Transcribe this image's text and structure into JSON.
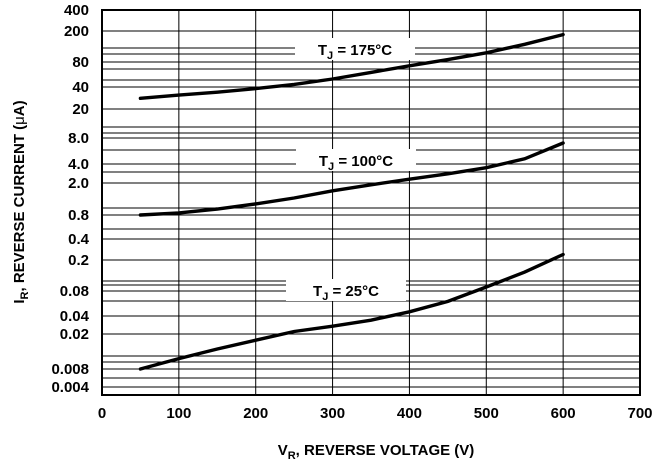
{
  "chart_data": {
    "type": "line",
    "xlabel_main": "V",
    "xlabel_sub": "R",
    "xlabel_rest": ", REVERSE VOLTAGE (V)",
    "ylabel_main": "I",
    "ylabel_sub": "R",
    "ylabel_rest": ", REVERSE CURRENT (",
    "ylabel_mu": "μ",
    "ylabel_end": "A)",
    "xlim": [
      0,
      700
    ],
    "x_ticks": [
      "0",
      "100",
      "200",
      "300",
      "400",
      "500",
      "600",
      "700"
    ],
    "y_ticks": [
      "400",
      "200",
      "80",
      "40",
      "20",
      "8.0",
      "4.0",
      "2.0",
      "0.8",
      "0.4",
      "0.2",
      "0.08",
      "0.04",
      "0.02",
      "0.008",
      "0.004"
    ],
    "grid": true,
    "series": [
      {
        "name_main": "T",
        "name_sub": "J",
        "name_rest": " = 175°C",
        "x": [
          50,
          100,
          150,
          200,
          250,
          300,
          350,
          400,
          450,
          500,
          550,
          600
        ],
        "y": [
          28,
          31,
          34,
          38,
          43,
          50,
          60,
          72,
          86,
          105,
          135,
          180
        ]
      },
      {
        "name_main": "T",
        "name_sub": "J",
        "name_rest": " = 100°C",
        "x": [
          50,
          100,
          150,
          200,
          250,
          300,
          350,
          400,
          450,
          500,
          550,
          600
        ],
        "y": [
          0.8,
          0.85,
          0.95,
          1.1,
          1.3,
          1.6,
          1.9,
          2.3,
          2.8,
          3.5,
          4.6,
          7.0
        ]
      },
      {
        "name_main": "T",
        "name_sub": "J",
        "name_rest": " = 25°C",
        "x": [
          50,
          100,
          150,
          200,
          250,
          300,
          350,
          400,
          450,
          500,
          550,
          600
        ],
        "y": [
          0.008,
          0.0105,
          0.0135,
          0.017,
          0.022,
          0.027,
          0.034,
          0.045,
          0.06,
          0.09,
          0.14,
          0.24
        ]
      }
    ]
  }
}
